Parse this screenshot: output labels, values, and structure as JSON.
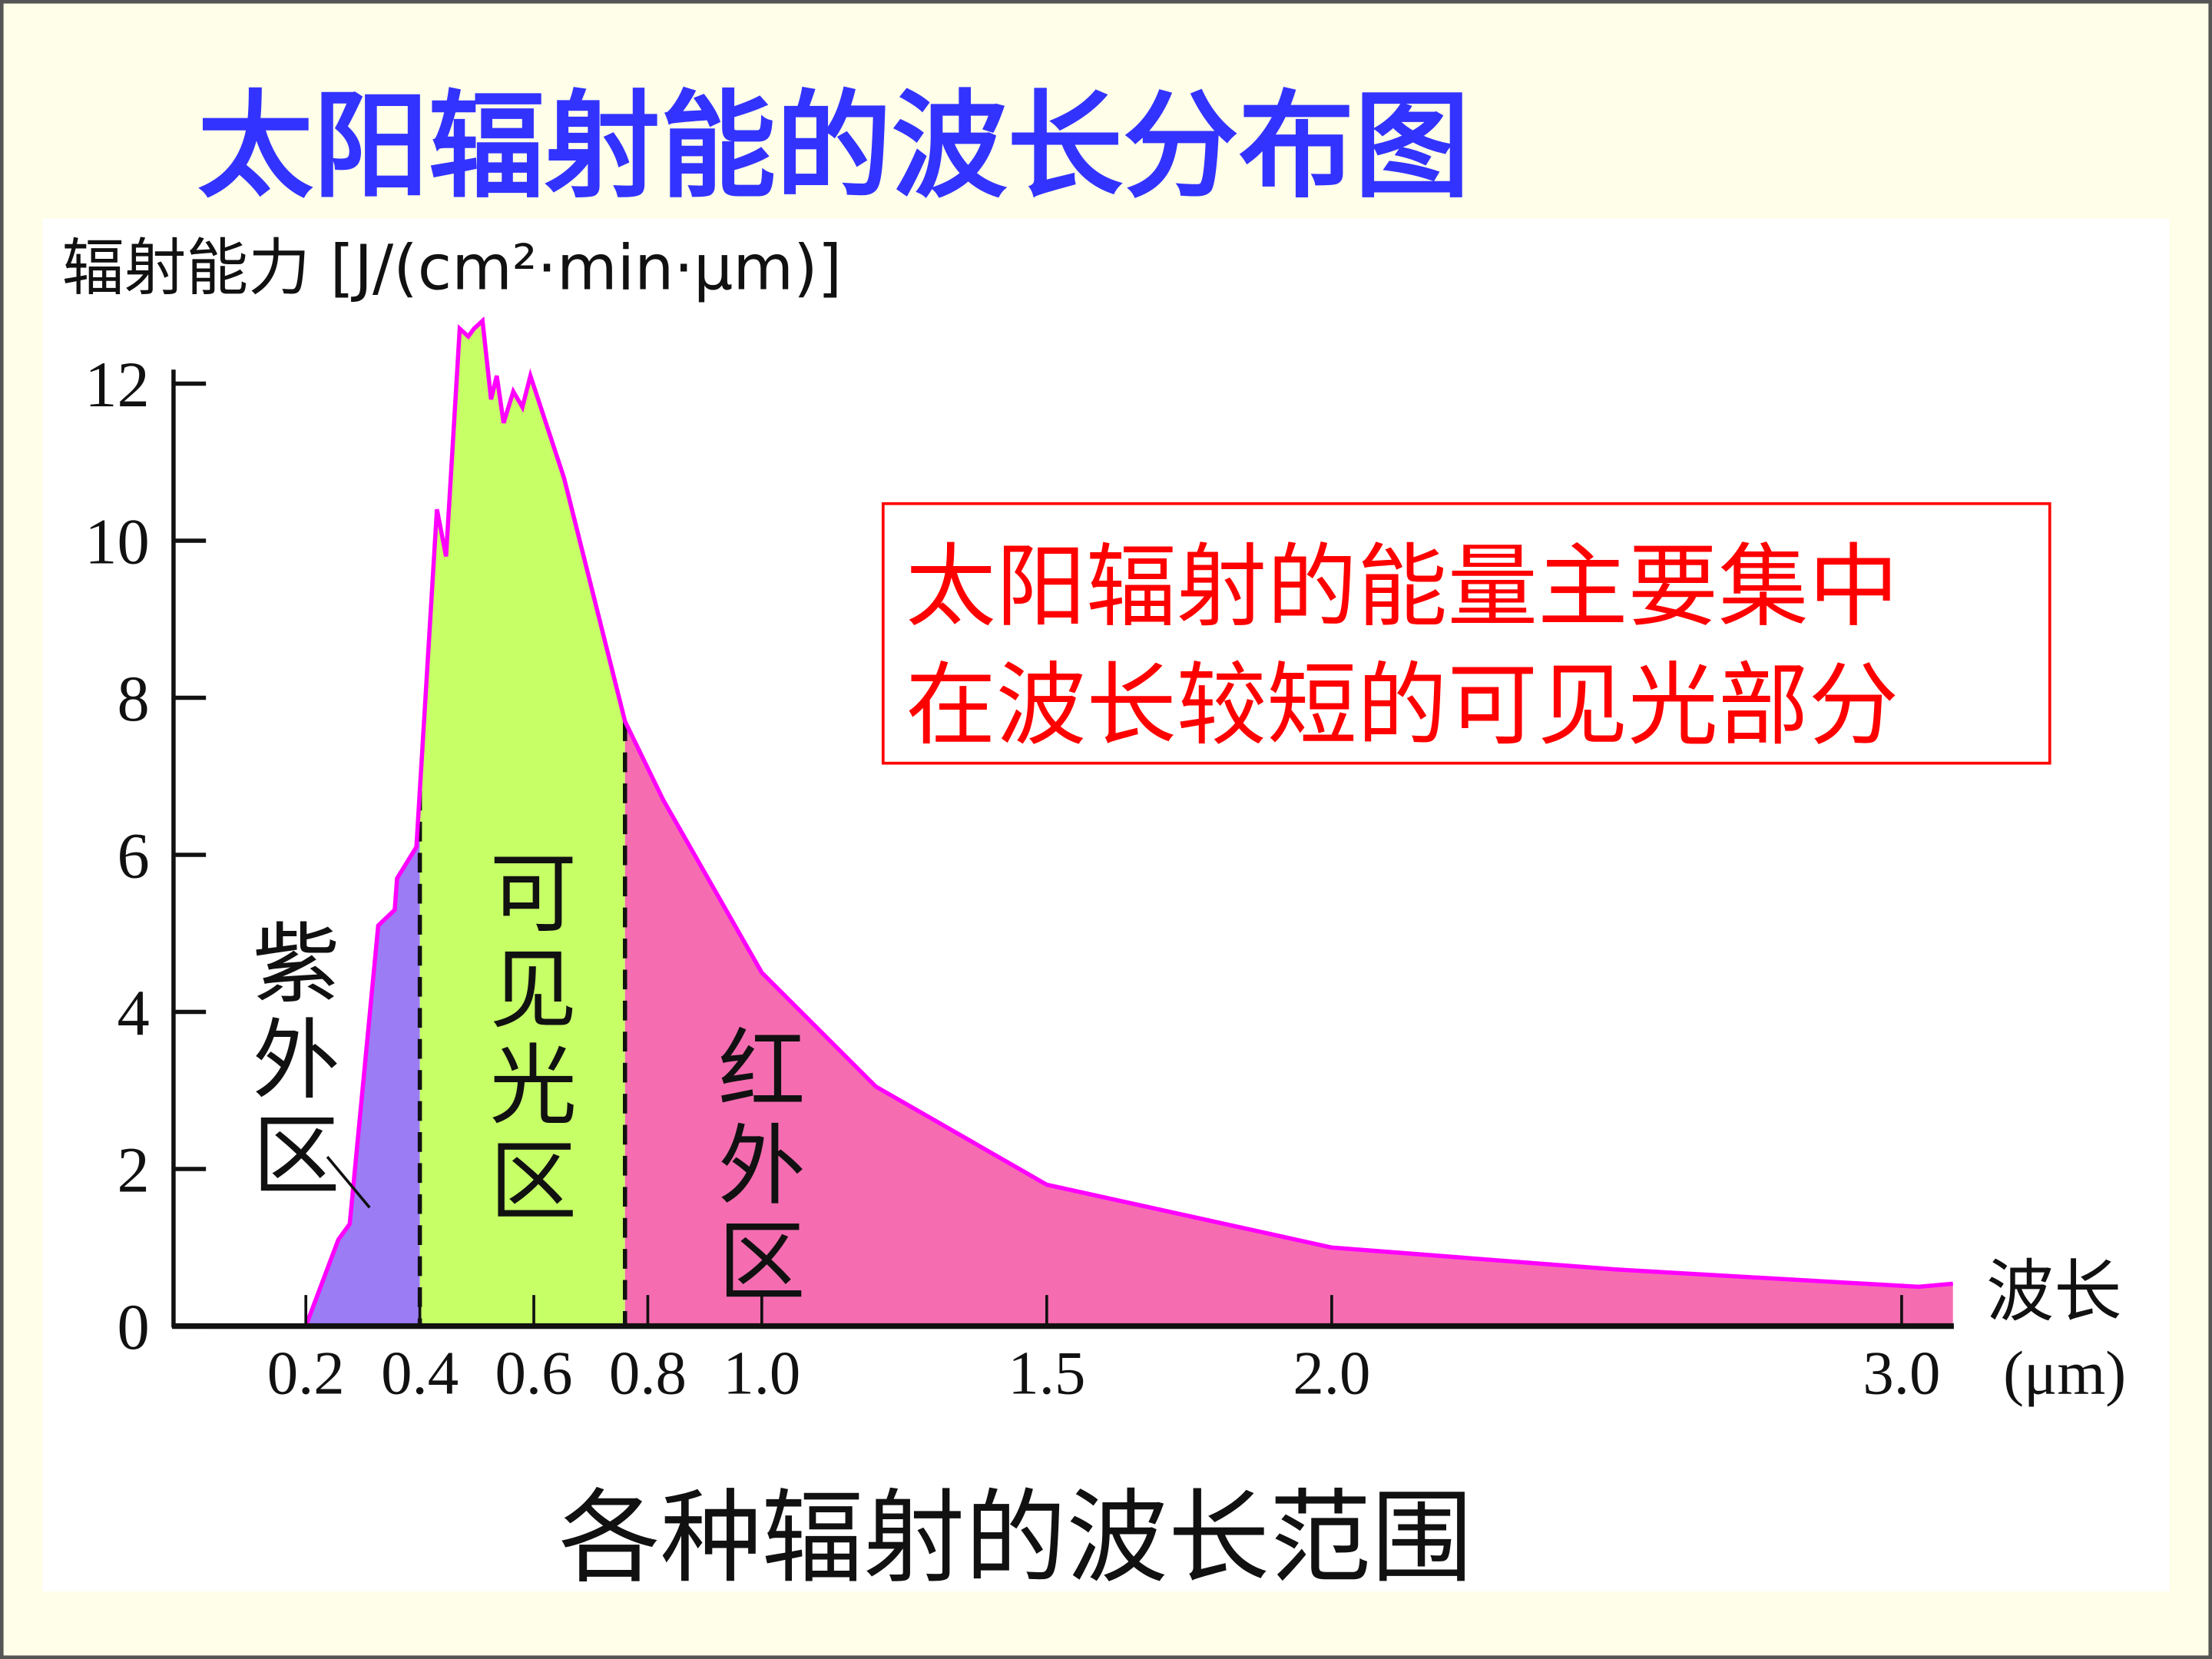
{
  "title": "太阳辐射能的波长分布图",
  "callout": {
    "line1": "太阳辐射的能量主要集中",
    "line2": "在波长较短的可见光部分"
  },
  "caption": "各种辐射的波长范围",
  "colors": {
    "title": "#3333ff",
    "callout": "#ff0000",
    "curve": "#ff00ff",
    "uv": "#9b7cf5",
    "visible": "#c6ff66",
    "infrared": "#f56db0"
  },
  "chart_data": {
    "type": "area",
    "ylabel": "辐射能力 [J/(cm²·min·μm)]",
    "xlabel": "波长",
    "x_unit": "(μm)",
    "ylim": [
      0,
      12
    ],
    "xlim": [
      0.2,
      3.1
    ],
    "y_ticks": [
      "0",
      "2",
      "4",
      "6",
      "8",
      "10",
      "12"
    ],
    "x_ticks": [
      {
        "value": 0.2,
        "label": "0.2"
      },
      {
        "value": 0.4,
        "label": "0.4"
      },
      {
        "value": 0.6,
        "label": "0.6"
      },
      {
        "value": 0.8,
        "label": "0.8"
      },
      {
        "value": 1.0,
        "label": "1.0"
      },
      {
        "value": 1.5,
        "label": "1.5"
      },
      {
        "value": 2.0,
        "label": "2.0"
      },
      {
        "value": 3.0,
        "label": "3.0"
      }
    ],
    "regions": [
      {
        "label": [
          "紫",
          "外",
          "区"
        ],
        "from": 0.2,
        "to": 0.4,
        "color": "#9b7cf5"
      },
      {
        "label": [
          "可",
          "见",
          "光",
          "区"
        ],
        "from": 0.4,
        "to": 0.76,
        "color": "#c6ff66"
      },
      {
        "label": [
          "红",
          "外",
          "区"
        ],
        "from": 0.76,
        "to": 3.09,
        "color": "#f56db0"
      }
    ],
    "x": [
      0.2,
      0.257,
      0.277,
      0.327,
      0.356,
      0.36,
      0.394,
      0.43,
      0.446,
      0.47,
      0.485,
      0.495,
      0.51,
      0.525,
      0.535,
      0.547,
      0.564,
      0.58,
      0.594,
      0.653,
      0.76,
      0.827,
      1.0,
      1.2,
      1.5,
      2.0,
      2.5,
      3.03,
      3.09
    ],
    "y": [
      0,
      1.1,
      1.3,
      5.1,
      5.3,
      5.7,
      6.1,
      10.4,
      9.8,
      12.7,
      12.6,
      12.7,
      12.8,
      11.8,
      12.1,
      11.5,
      11.9,
      11.7,
      12.1,
      10.8,
      7.7,
      6.7,
      4.5,
      3.05,
      1.8,
      1.0,
      0.72,
      0.5,
      0.54
    ]
  }
}
